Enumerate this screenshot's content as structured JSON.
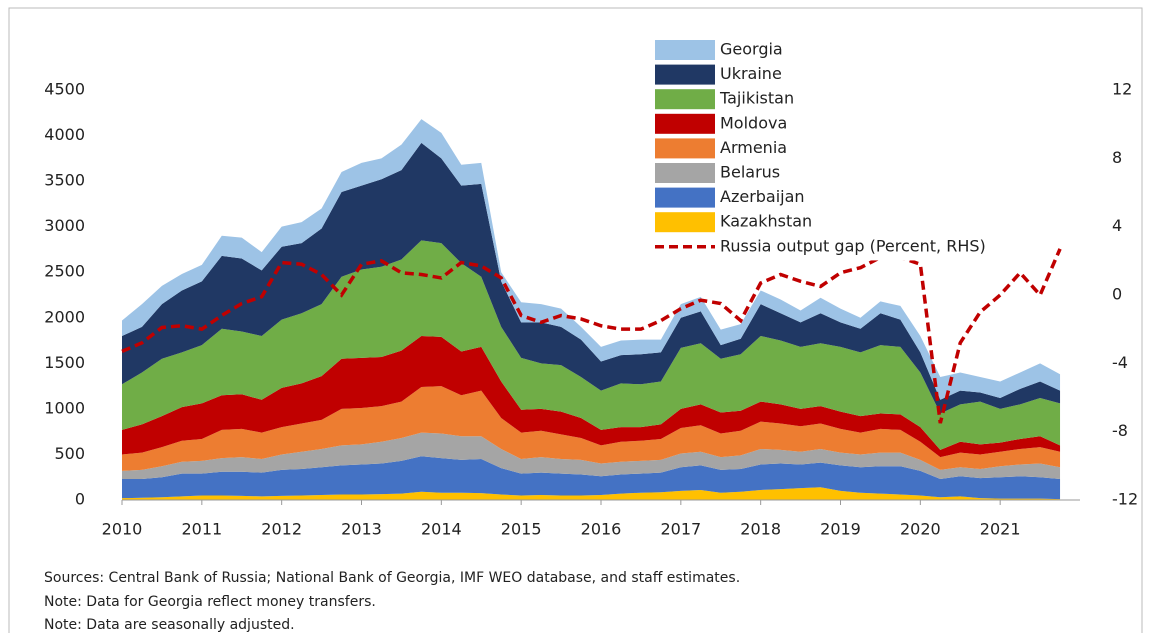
{
  "chart_data": {
    "type": "area",
    "x": [
      2010,
      2010.25,
      2010.5,
      2010.75,
      2011,
      2011.25,
      2011.5,
      2011.75,
      2012,
      2012.25,
      2012.5,
      2012.75,
      2013,
      2013.25,
      2013.5,
      2013.75,
      2014,
      2014.25,
      2014.5,
      2014.75,
      2015,
      2015.25,
      2015.5,
      2015.75,
      2016,
      2016.25,
      2016.5,
      2016.75,
      2017,
      2017.25,
      2017.5,
      2017.75,
      2018,
      2018.25,
      2018.5,
      2018.75,
      2019,
      2019.25,
      2019.5,
      2019.75,
      2020,
      2020.25,
      2020.5,
      2020.75,
      2021,
      2021.25,
      2021.5,
      2021.75
    ],
    "xlim": [
      2010,
      2022
    ],
    "xticks": [
      2010,
      2011,
      2012,
      2013,
      2014,
      2015,
      2016,
      2017,
      2018,
      2019,
      2020,
      2021
    ],
    "ylim": [
      0,
      4500
    ],
    "yticks": [
      0,
      500,
      1000,
      1500,
      2000,
      2500,
      3000,
      3500,
      4000,
      4500
    ],
    "y2lim": [
      -12,
      12
    ],
    "y2ticks": [
      -12,
      -8,
      -4,
      0,
      4,
      8,
      12
    ],
    "legend": "upper center",
    "series": [
      {
        "name": "Georgia",
        "color": "#9dc3e6",
        "values": [
          170,
          250,
          200,
          180,
          180,
          220,
          230,
          200,
          220,
          230,
          220,
          220,
          250,
          230,
          280,
          260,
          280,
          230,
          230,
          100,
          220,
          200,
          200,
          140,
          160,
          160,
          160,
          140,
          150,
          160,
          170,
          160,
          150,
          150,
          130,
          170,
          150,
          120,
          130,
          150,
          180,
          250,
          200,
          170,
          180,
          180,
          200,
          180
        ]
      },
      {
        "name": "Ukraine",
        "color": "#203864",
        "values": [
          530,
          500,
          600,
          680,
          700,
          800,
          800,
          720,
          800,
          770,
          830,
          930,
          920,
          960,
          980,
          1070,
          930,
          850,
          1020,
          500,
          390,
          450,
          420,
          410,
          320,
          310,
          330,
          320,
          330,
          350,
          150,
          170,
          350,
          300,
          270,
          330,
          270,
          260,
          350,
          300,
          220,
          150,
          150,
          100,
          120,
          170,
          180,
          140
        ]
      },
      {
        "name": "Tajikistan",
        "color": "#70ad47",
        "values": [
          500,
          570,
          630,
          600,
          640,
          730,
          690,
          700,
          750,
          770,
          790,
          900,
          970,
          990,
          1000,
          1050,
          1030,
          970,
          770,
          600,
          570,
          500,
          510,
          450,
          430,
          480,
          470,
          470,
          670,
          670,
          590,
          620,
          720,
          700,
          680,
          690,
          710,
          700,
          750,
          740,
          600,
          400,
          410,
          470,
          370,
          380,
          420,
          460
        ]
      },
      {
        "name": "Moldova",
        "color": "#c00000",
        "values": [
          270,
          310,
          340,
          370,
          390,
          380,
          380,
          360,
          430,
          440,
          480,
          550,
          550,
          540,
          560,
          560,
          540,
          480,
          480,
          400,
          250,
          240,
          250,
          220,
          170,
          160,
          150,
          160,
          210,
          230,
          230,
          220,
          220,
          210,
          190,
          190,
          190,
          180,
          170,
          170,
          160,
          80,
          120,
          110,
          100,
          110,
          120,
          70
        ]
      },
      {
        "name": "Armenia",
        "color": "#ed7d31",
        "values": [
          180,
          190,
          210,
          230,
          240,
          310,
          310,
          290,
          300,
          310,
          320,
          400,
          400,
          390,
          400,
          500,
          520,
          450,
          500,
          340,
          290,
          290,
          270,
          240,
          200,
          220,
          220,
          230,
          280,
          290,
          260,
          270,
          300,
          290,
          280,
          280,
          260,
          240,
          260,
          250,
          200,
          140,
          160,
          160,
          160,
          170,
          180,
          170
        ]
      },
      {
        "name": "Belarus",
        "color": "#a5a5a5",
        "values": [
          90,
          100,
          120,
          130,
          140,
          150,
          160,
          150,
          170,
          190,
          200,
          220,
          220,
          240,
          250,
          260,
          270,
          260,
          250,
          210,
          160,
          170,
          160,
          160,
          140,
          140,
          140,
          140,
          150,
          150,
          140,
          150,
          170,
          150,
          140,
          150,
          140,
          140,
          150,
          150,
          120,
          100,
          100,
          100,
          120,
          130,
          150,
          130
        ]
      },
      {
        "name": "Azerbaijan",
        "color": "#4472c4",
        "values": [
          210,
          205,
          220,
          250,
          240,
          260,
          265,
          260,
          285,
          290,
          305,
          320,
          330,
          335,
          360,
          390,
          380,
          360,
          375,
          290,
          240,
          245,
          240,
          230,
          205,
          210,
          210,
          215,
          260,
          270,
          250,
          250,
          280,
          280,
          260,
          270,
          280,
          280,
          300,
          310,
          270,
          200,
          220,
          220,
          235,
          245,
          235,
          220
        ]
      },
      {
        "name": "Kazakhstan",
        "color": "#ffc000",
        "values": [
          20,
          25,
          30,
          40,
          50,
          50,
          45,
          40,
          45,
          50,
          55,
          60,
          60,
          65,
          70,
          90,
          80,
          80,
          75,
          60,
          50,
          55,
          50,
          50,
          55,
          70,
          80,
          85,
          100,
          110,
          80,
          90,
          110,
          120,
          130,
          140,
          100,
          80,
          70,
          60,
          50,
          30,
          40,
          20,
          15,
          15,
          15,
          10
        ]
      },
      {
        "name": "Russia output gap (Percent, RHS)",
        "color": "#c00000",
        "axis": "y2",
        "values": [
          -3.3,
          -2.8,
          -1.9,
          -1.8,
          -2.0,
          -1.2,
          -0.5,
          -0.1,
          1.9,
          1.8,
          1.2,
          0.0,
          1.8,
          2.0,
          1.3,
          1.2,
          1.0,
          1.9,
          1.7,
          1.0,
          -1.2,
          -1.6,
          -1.2,
          -1.4,
          -1.8,
          -2.0,
          -2.0,
          -1.5,
          -0.8,
          -0.3,
          -0.5,
          -1.5,
          0.7,
          1.2,
          0.8,
          0.5,
          1.3,
          1.6,
          2.2,
          2.2,
          1.8,
          -7.5,
          -2.8,
          -1.0,
          0.0,
          1.3,
          0.0,
          2.7
        ]
      }
    ],
    "notes": [
      "Sources: Central Bank of Russia; National Bank of Georgia, IMF WEO database, and staff estimates.",
      "Note: Data for Georgia reflect money transfers.",
      "Note: Data are seasonally adjusted."
    ]
  }
}
